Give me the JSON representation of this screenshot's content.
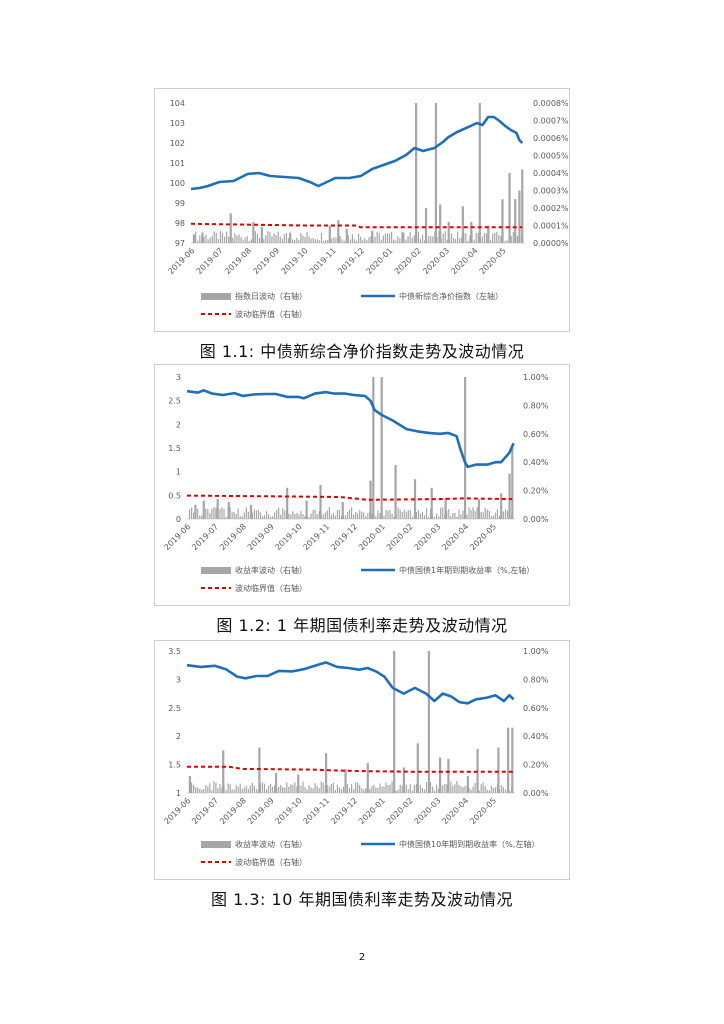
{
  "page_number": "2",
  "colors": {
    "line": "#1f6fb7",
    "bars": "#a6a6a6",
    "threshold": "#e00000",
    "axis_text": "#595959"
  },
  "figures": [
    {
      "caption": "图 1.1:  中债新综合净价指数走势及波动情况",
      "chart_data": {
        "type": "line+bar",
        "x_categories": [
          "2019-06",
          "2019-07",
          "2019-08",
          "2019-09",
          "2019-10",
          "2019-11",
          "2019-12",
          "2020-01",
          "2020-02",
          "2020-03",
          "2020-04",
          "2020-05"
        ],
        "left_axis": {
          "ticks": [
            "104",
            "103",
            "102",
            "101",
            "100",
            "99",
            "98",
            "97"
          ],
          "min": 97,
          "max": 104
        },
        "right_axis": {
          "ticks": [
            "0.0008%",
            "0.0007%",
            "0.0006%",
            "0.0005%",
            "0.0004%",
            "0.0003%",
            "0.0002%",
            "0.0001%",
            "0.0000%"
          ],
          "min": 0,
          "max": 0.0008
        },
        "legend": [
          "指数日波动（右轴）",
          "中债新综合净价指数（左轴）",
          "波动临界值（右轴）"
        ],
        "series": [
          {
            "name": "中债新综合净价指数（左轴）",
            "axis": "left",
            "type": "line",
            "points": [
              [
                0,
                99.7
              ],
              [
                0.3,
                99.75
              ],
              [
                0.6,
                99.85
              ],
              [
                1.0,
                100.05
              ],
              [
                1.5,
                100.1
              ],
              [
                2.0,
                100.45
              ],
              [
                2.4,
                100.5
              ],
              [
                2.8,
                100.35
              ],
              [
                3.3,
                100.3
              ],
              [
                3.8,
                100.25
              ],
              [
                4.2,
                100.05
              ],
              [
                4.5,
                99.85
              ],
              [
                4.8,
                100.05
              ],
              [
                5.1,
                100.25
              ],
              [
                5.6,
                100.25
              ],
              [
                6.0,
                100.35
              ],
              [
                6.4,
                100.7
              ],
              [
                6.8,
                100.9
              ],
              [
                7.2,
                101.1
              ],
              [
                7.6,
                101.4
              ],
              [
                7.9,
                101.75
              ],
              [
                8.2,
                101.6
              ],
              [
                8.6,
                101.75
              ],
              [
                8.9,
                102.05
              ],
              [
                9.1,
                102.3
              ],
              [
                9.4,
                102.55
              ],
              [
                9.8,
                102.8
              ],
              [
                10.1,
                103.0
              ],
              [
                10.3,
                102.9
              ],
              [
                10.5,
                103.3
              ],
              [
                10.7,
                103.3
              ],
              [
                10.9,
                103.1
              ],
              [
                11.1,
                102.85
              ],
              [
                11.3,
                102.65
              ],
              [
                11.5,
                102.5
              ],
              [
                11.6,
                102.15
              ],
              [
                11.7,
                102.0
              ]
            ]
          },
          {
            "name": "指数日波动（右轴）",
            "axis": "right",
            "type": "bar",
            "spikes": [
              [
                0.1,
                5e-05
              ],
              [
                0.4,
                6e-05
              ],
              [
                1.4,
                0.00017
              ],
              [
                2.2,
                0.00012
              ],
              [
                2.5,
                9e-05
              ],
              [
                3.5,
                6e-05
              ],
              [
                4.9,
                0.0001
              ],
              [
                5.2,
                0.00013
              ],
              [
                5.5,
                8e-05
              ],
              [
                6.4,
                7e-05
              ],
              [
                7.5,
                6e-05
              ],
              [
                7.95,
                0.0008
              ],
              [
                8.3,
                0.0002
              ],
              [
                8.65,
                0.0008
              ],
              [
                8.8,
                0.00022
              ],
              [
                9.1,
                0.00012
              ],
              [
                9.6,
                0.00021
              ],
              [
                9.9,
                0.00012
              ],
              [
                10.2,
                0.0008
              ],
              [
                10.5,
                0.0001
              ],
              [
                11.0,
                0.00025
              ],
              [
                11.25,
                0.0004
              ],
              [
                11.45,
                0.00025
              ],
              [
                11.6,
                0.0003
              ],
              [
                11.7,
                0.00042
              ]
            ]
          },
          {
            "name": "波动临界值（右轴）",
            "axis": "right",
            "type": "line",
            "style": "dashed",
            "points": [
              [
                0,
                0.00011
              ],
              [
                4,
                0.0001
              ],
              [
                5.8,
                0.0001
              ],
              [
                6.0,
                9e-05
              ],
              [
                11.7,
                9e-05
              ]
            ]
          }
        ]
      }
    },
    {
      "caption": "图 1.2:  1 年期国债利率走势及波动情况",
      "chart_data": {
        "type": "line+bar",
        "x_categories": [
          "2019-06",
          "2019-07",
          "2019-08",
          "2019-09",
          "2019-10",
          "2019-11",
          "2019-12",
          "2020-01",
          "2020-02",
          "2020-03",
          "2020-04",
          "2020-05"
        ],
        "left_axis": {
          "ticks": [
            "3",
            "2.5",
            "2",
            "1.5",
            "1",
            "0.5",
            "0"
          ],
          "min": 0,
          "max": 3
        },
        "right_axis": {
          "ticks": [
            "1.00%",
            "0.80%",
            "0.60%",
            "0.40%",
            "0.20%",
            "0.00%"
          ],
          "min": 0,
          "max": 1.0
        },
        "legend": [
          "收益率波动（右轴）",
          "中债国债1年期到期收益率（%,左轴）",
          "波动临界值（右轴）"
        ],
        "series": [
          {
            "name": "中债国债1年期到期收益率（%,左轴）",
            "axis": "left",
            "type": "line",
            "points": [
              [
                0,
                2.7
              ],
              [
                0.4,
                2.67
              ],
              [
                0.6,
                2.72
              ],
              [
                0.9,
                2.65
              ],
              [
                1.3,
                2.62
              ],
              [
                1.7,
                2.66
              ],
              [
                2.0,
                2.6
              ],
              [
                2.4,
                2.63
              ],
              [
                2.8,
                2.64
              ],
              [
                3.2,
                2.64
              ],
              [
                3.6,
                2.58
              ],
              [
                4.0,
                2.58
              ],
              [
                4.2,
                2.55
              ],
              [
                4.6,
                2.65
              ],
              [
                5.0,
                2.68
              ],
              [
                5.3,
                2.65
              ],
              [
                5.7,
                2.65
              ],
              [
                6.0,
                2.62
              ],
              [
                6.4,
                2.6
              ],
              [
                6.6,
                2.5
              ],
              [
                6.75,
                2.3
              ],
              [
                7.0,
                2.2
              ],
              [
                7.4,
                2.08
              ],
              [
                7.9,
                1.9
              ],
              [
                8.3,
                1.85
              ],
              [
                8.7,
                1.82
              ],
              [
                9.1,
                1.8
              ],
              [
                9.4,
                1.82
              ],
              [
                9.7,
                1.75
              ],
              [
                9.85,
                1.45
              ],
              [
                10.0,
                1.2
              ],
              [
                10.1,
                1.1
              ],
              [
                10.4,
                1.15
              ],
              [
                10.8,
                1.15
              ],
              [
                11.1,
                1.2
              ],
              [
                11.3,
                1.2
              ],
              [
                11.6,
                1.4
              ],
              [
                11.75,
                1.6
              ]
            ]
          },
          {
            "name": "收益率波动（右轴）",
            "axis": "right",
            "type": "bar",
            "spikes": [
              [
                0.3,
                0.1
              ],
              [
                0.6,
                0.13
              ],
              [
                1.1,
                0.14
              ],
              [
                1.5,
                0.12
              ],
              [
                2.3,
                0.1
              ],
              [
                3.6,
                0.22
              ],
              [
                4.3,
                0.13
              ],
              [
                4.8,
                0.24
              ],
              [
                5.6,
                0.12
              ],
              [
                6.6,
                0.27
              ],
              [
                6.7,
                1.0
              ],
              [
                7.0,
                1.0
              ],
              [
                7.5,
                0.38
              ],
              [
                8.2,
                0.28
              ],
              [
                8.8,
                0.22
              ],
              [
                9.3,
                0.15
              ],
              [
                10.0,
                1.0
              ],
              [
                10.5,
                0.14
              ],
              [
                11.3,
                0.18
              ],
              [
                11.6,
                0.32
              ],
              [
                11.7,
                0.5
              ]
            ]
          },
          {
            "name": "波动临界值（右轴）",
            "axis": "right",
            "type": "line",
            "style": "dashed",
            "points": [
              [
                0,
                0.165
              ],
              [
                3,
                0.16
              ],
              [
                5.5,
                0.155
              ],
              [
                6.5,
                0.135
              ],
              [
                9,
                0.14
              ],
              [
                10,
                0.145
              ],
              [
                11.7,
                0.14
              ]
            ]
          }
        ]
      }
    },
    {
      "caption": "图 1.3:  10 年期国债利率走势及波动情况",
      "chart_data": {
        "type": "line+bar",
        "x_categories": [
          "2019-06",
          "2019-07",
          "2019-08",
          "2019-09",
          "2019-10",
          "2019-11",
          "2019-12",
          "2020-01",
          "2020-02",
          "2020-03",
          "2020-04",
          "2020-05"
        ],
        "left_axis": {
          "ticks": [
            "3.5",
            "3",
            "2.5",
            "2",
            "1.5",
            "1"
          ],
          "min": 1,
          "max": 3.5
        },
        "right_axis": {
          "ticks": [
            "1.00%",
            "0.80%",
            "0.60%",
            "0.40%",
            "0.20%",
            "0.00%"
          ],
          "min": 0,
          "max": 1.0
        },
        "legend": [
          "收益率波动（右轴）",
          "中债国债10年期到期收益率（%,左轴）",
          "波动临界值（右轴）"
        ],
        "series": [
          {
            "name": "中债国债10年期到期收益率（%,左轴）",
            "axis": "left",
            "type": "line",
            "points": [
              [
                0,
                3.25
              ],
              [
                0.5,
                3.22
              ],
              [
                1.0,
                3.24
              ],
              [
                1.4,
                3.18
              ],
              [
                1.8,
                3.05
              ],
              [
                2.1,
                3.02
              ],
              [
                2.5,
                3.06
              ],
              [
                2.9,
                3.06
              ],
              [
                3.3,
                3.15
              ],
              [
                3.8,
                3.14
              ],
              [
                4.2,
                3.18
              ],
              [
                4.6,
                3.24
              ],
              [
                5.0,
                3.3
              ],
              [
                5.4,
                3.22
              ],
              [
                5.8,
                3.2
              ],
              [
                6.2,
                3.17
              ],
              [
                6.5,
                3.2
              ],
              [
                6.8,
                3.14
              ],
              [
                7.1,
                3.05
              ],
              [
                7.4,
                2.85
              ],
              [
                7.8,
                2.75
              ],
              [
                8.2,
                2.85
              ],
              [
                8.6,
                2.75
              ],
              [
                8.9,
                2.62
              ],
              [
                9.2,
                2.75
              ],
              [
                9.5,
                2.7
              ],
              [
                9.8,
                2.6
              ],
              [
                10.1,
                2.58
              ],
              [
                10.4,
                2.65
              ],
              [
                10.8,
                2.68
              ],
              [
                11.1,
                2.72
              ],
              [
                11.4,
                2.62
              ],
              [
                11.6,
                2.72
              ],
              [
                11.75,
                2.65
              ]
            ]
          },
          {
            "name": "收益率波动（右轴）",
            "axis": "right",
            "type": "bar",
            "spikes": [
              [
                0.1,
                0.12
              ],
              [
                1.3,
                0.3
              ],
              [
                2.6,
                0.32
              ],
              [
                3.2,
                0.14
              ],
              [
                4.0,
                0.13
              ],
              [
                5.0,
                0.28
              ],
              [
                5.7,
                0.17
              ],
              [
                6.5,
                0.21
              ],
              [
                7.45,
                1.0
              ],
              [
                7.8,
                0.18
              ],
              [
                8.3,
                0.35
              ],
              [
                8.7,
                1.0
              ],
              [
                9.1,
                0.25
              ],
              [
                9.4,
                0.24
              ],
              [
                10.1,
                0.12
              ],
              [
                10.45,
                0.31
              ],
              [
                11.2,
                0.32
              ],
              [
                11.55,
                0.46
              ],
              [
                11.7,
                0.46
              ]
            ]
          },
          {
            "name": "波动临界值（右轴）",
            "axis": "right",
            "type": "line",
            "style": "dashed",
            "points": [
              [
                0,
                0.185
              ],
              [
                1.5,
                0.185
              ],
              [
                2.0,
                0.17
              ],
              [
                4.5,
                0.165
              ],
              [
                6.0,
                0.155
              ],
              [
                8,
                0.15
              ],
              [
                11.75,
                0.15
              ]
            ]
          }
        ]
      }
    }
  ]
}
